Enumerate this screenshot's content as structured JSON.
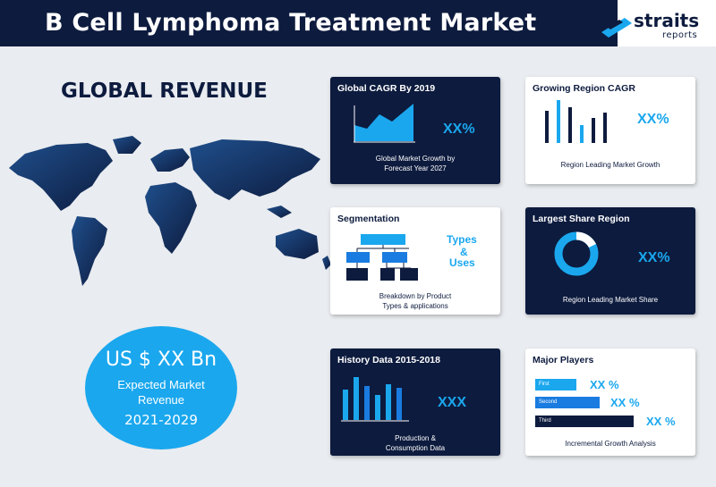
{
  "header": {
    "title": "B Cell Lymphoma Treatment Market",
    "logo_word": "straits",
    "logo_sub": "reports"
  },
  "left": {
    "heading": "GLOBAL REVENUE",
    "circle": {
      "amount": "US $ XX Bn",
      "line1": "Expected Market",
      "line2": "Revenue",
      "years": "2021-2029"
    }
  },
  "cards": {
    "cagr": {
      "title": "Global CAGR By 2019",
      "value": "XX%",
      "sub1": "Global Market Growth by",
      "sub2": "Forecast Year 2027"
    },
    "growing": {
      "title": "Growing Region CAGR",
      "value": "XX%",
      "sub1": "Region Leading Market Growth"
    },
    "segmentation": {
      "title": "Segmentation",
      "value1": "Types",
      "value2": "&",
      "value3": "Uses",
      "sub1": "Breakdown by Product",
      "sub2": "Types & applications"
    },
    "largest": {
      "title": "Largest Share Region",
      "value": "XX%",
      "sub1": "Region Leading Market Share"
    },
    "history": {
      "title": "History Data 2015-2018",
      "value": "XXX",
      "sub1": "Production &",
      "sub2": "Consumption Data"
    },
    "players": {
      "title": "Major Players",
      "bars": [
        {
          "label": "First",
          "value": "XX %"
        },
        {
          "label": "Second",
          "value": "XX %"
        },
        {
          "label": "Third",
          "value": "XX %"
        }
      ],
      "sub1": "Incremental Growth Analysis"
    }
  },
  "colors": {
    "navy": "#0d1b3e",
    "accent": "#1aa7ee",
    "background": "#e9ecf0"
  }
}
